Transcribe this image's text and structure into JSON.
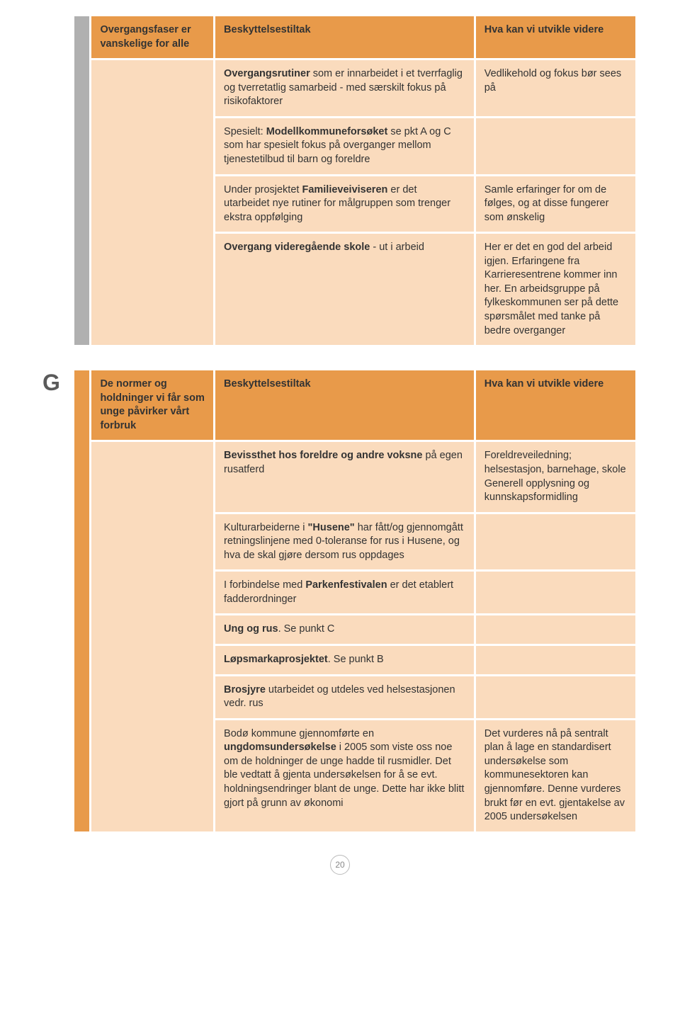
{
  "colors": {
    "side_grey": "#b0b0b0",
    "side_orange": "#e89a4a",
    "header_bg": "#e89a4a",
    "cell_bg": "#fadbbd",
    "text": "#333333",
    "letter": "#5a5a5a"
  },
  "typography": {
    "base_fontsize_pt": 11,
    "header_weight": "bold",
    "letter_fontsize_pt": 24
  },
  "tableF": {
    "header": {
      "col1": "Overgangsfaser er vanskelige for alle",
      "col2": "Beskyttelsestiltak",
      "col3": "Hva kan vi utvikle videre"
    },
    "rows": [
      {
        "b_pre": "Overgangsrutiner",
        "b_post": " som er innarbeidet i et tverrfaglig og tverretatlig samarbeid - med særskilt fokus på risikofaktorer",
        "c": "Vedlikehold og fokus bør sees på"
      },
      {
        "b_pre": "",
        "b_mid1": "Spesielt: ",
        "b_bold": "Modellkommuneforsøket",
        "b_post": " se pkt A og C som har spesielt fokus på overganger mellom tjenestetilbud til barn og foreldre",
        "c": ""
      },
      {
        "b_pre": "Under prosjektet ",
        "b_bold": "Familieveiviseren",
        "b_post": " er det utarbeidet nye rutiner for målgruppen som trenger ekstra oppfølging",
        "c": "Samle erfaringer for om de følges, og at disse fungerer som ønskelig"
      },
      {
        "b_bold": "Overgang videregående skole",
        "b_post": " - ut i arbeid",
        "c": "Her er det en god del arbeid igjen. Erfaringene fra Karrieresentrene kommer inn her. En arbeidsgruppe på fylkeskommunen ser på dette spørsmålet med tanke på bedre overganger"
      }
    ]
  },
  "tableG": {
    "letter": "G",
    "header": {
      "col1": "De normer og holdninger vi får som unge påvirker vårt forbruk",
      "col2": "Beskyttelsestiltak",
      "col3": "Hva kan vi utvikle videre"
    },
    "rows": [
      {
        "b_bold": "Bevissthet hos foreldre og andre voksne",
        "b_post": " på egen rusatferd",
        "c": "Foreldreveiledning; helsestasjon, barnehage, skole\nGenerell opplysning og kunnskapsformidling"
      },
      {
        "b_pre": "Kulturarbeiderne i ",
        "b_bold": "\"Husene\"",
        "b_post": " har fått/og gjennomgått retningslinjene med 0-toleranse for rus i Husene, og hva de skal gjøre dersom rus oppdages",
        "c": ""
      },
      {
        "b_pre": "I forbindelse med ",
        "b_bold": "Parkenfestivalen",
        "b_post": " er det etablert fadderordninger",
        "c": ""
      },
      {
        "b_bold": "Ung og rus",
        "b_post": ". Se punkt C",
        "c": ""
      },
      {
        "b_bold": "Løpsmarkaprosjektet",
        "b_post": ". Se punkt B",
        "c": ""
      },
      {
        "b_bold": "Brosjyre",
        "b_post": " utarbeidet og utdeles ved helsestasjonen vedr. rus",
        "c": ""
      },
      {
        "b_pre": "Bodø kommune gjennomførte en ",
        "b_bold": "ungdomsundersøkelse",
        "b_post": " i 2005 som viste oss noe om de holdninger de unge hadde til rusmidler. Det ble vedtatt å gjenta undersøkelsen for å se evt. holdningsendringer blant de unge. Dette har ikke blitt gjort på grunn av økonomi",
        "c": "Det vurderes nå på sentralt plan å lage en standardisert undersøkelse som kommunesektoren kan gjennomføre. Denne vurderes brukt før en evt. gjentakelse av 2005 undersøkelsen"
      }
    ]
  },
  "page_number": "20"
}
